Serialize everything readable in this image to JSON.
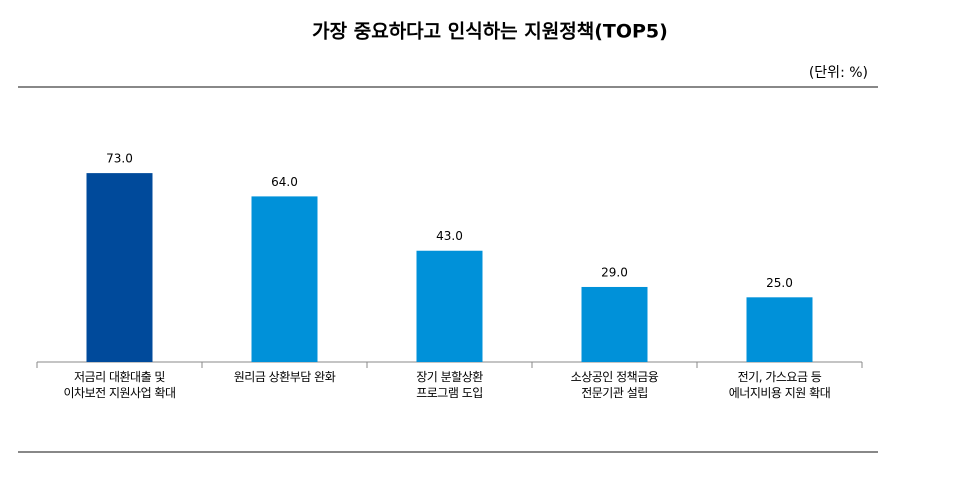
{
  "chart_data": {
    "type": "bar",
    "title": "가장 중요하다고 인식하는 지원정책(TOP5)",
    "subtitle": "(단위: %)",
    "categories": [
      "저금리 대환대출 및\n이차보전 지원사업 확대",
      "원리금 상환부담 완화",
      "장기 분할상환\n프로그램 도입",
      "소상공인 정책금융\n전문기관 설립",
      "전기, 가스요금 등\n에너지비용 지원 확대"
    ],
    "values": [
      73,
      64,
      43,
      29,
      25
    ],
    "value_labels": [
      "73.0",
      "64.0",
      "43.0",
      "29.0",
      "25.0"
    ],
    "colors": [
      "#004a9b",
      "#0091d9",
      "#0091d9",
      "#0091d9",
      "#0091d9"
    ],
    "ylim": [
      0,
      80
    ]
  }
}
